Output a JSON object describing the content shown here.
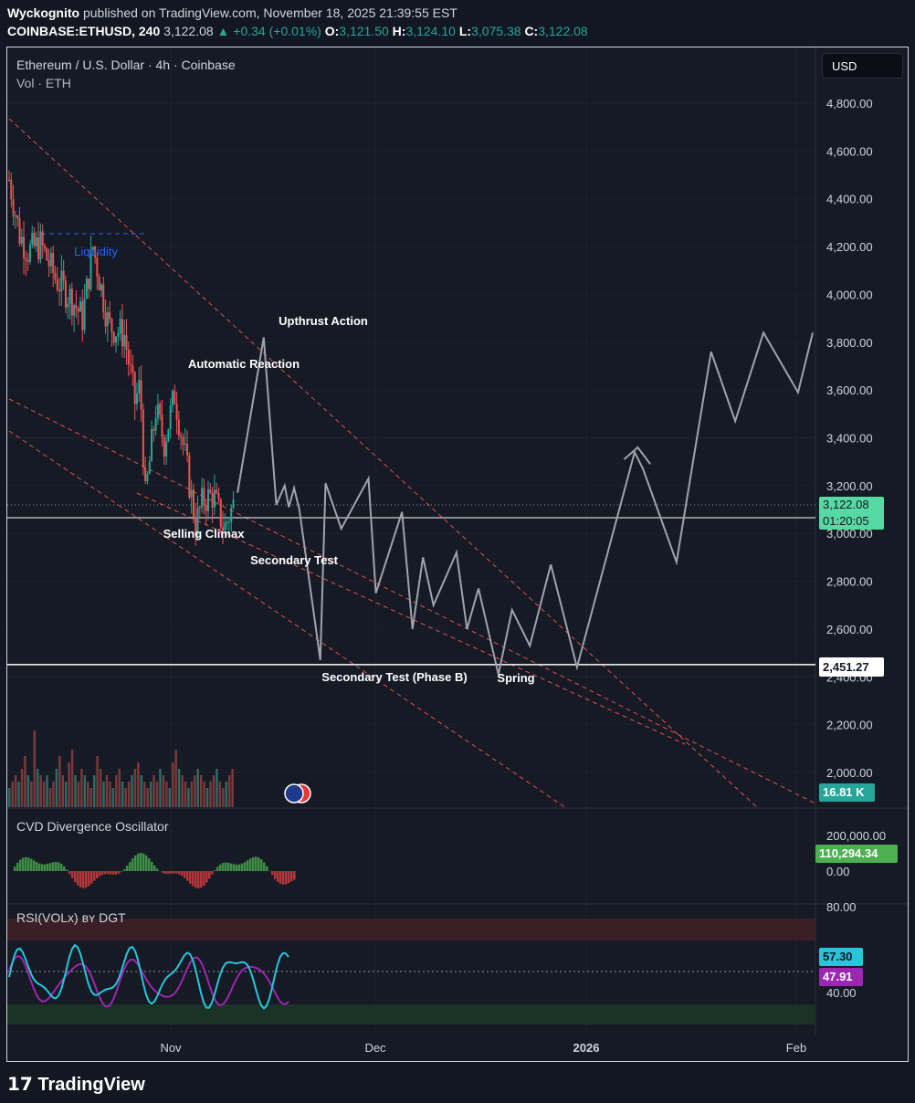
{
  "header": {
    "publisher": "Wyckognito",
    "published_text": "published on TradingView.com, November 18, 2025 21:39:55 EST",
    "symbol": "COINBASE:ETHUSD, 240",
    "price": "3,122.08",
    "change": "▲ +0.34 (+0.01%)",
    "o_label": "O:",
    "o": "3,121.50",
    "h_label": "H:",
    "h": "3,124.10",
    "l_label": "L:",
    "l": "3,075.38",
    "c_label": "C:",
    "c": "3,122.08"
  },
  "pane": {
    "title": "Ethereum / U.S. Dollar · 4h · Coinbase",
    "vol_label": "Vol · ETH",
    "currency": "USD"
  },
  "chart_data": {
    "type": "candlestick",
    "y_ticks": [
      "4,800.00",
      "4,600.00",
      "4,400.00",
      "4,200.00",
      "4,000.00",
      "3,800.00",
      "3,600.00",
      "3,400.00",
      "3,200.00",
      "3,000.00",
      "2,800.00",
      "2,600.00",
      "2,400.00",
      "2,200.00",
      "2,000.00"
    ],
    "y_tick_values": [
      4800,
      4600,
      4400,
      4200,
      4000,
      3800,
      3600,
      3400,
      3200,
      3000,
      2800,
      2600,
      2400,
      2200,
      2000
    ],
    "x_ticks": [
      "Nov",
      "Dec",
      "2026",
      "Feb"
    ],
    "current_price": "3,122.08",
    "countdown": "01:20:05",
    "level_price": "2,451.27",
    "level_value": 2451.27,
    "volume_label": "16.81 K",
    "annotations": [
      "Liquidity",
      "Upthrust Action",
      "Automatic Reaction",
      "Selling Climax",
      "Secondary Test",
      "Secondary Test (Phase B)",
      "Spring"
    ],
    "price_path": [
      [
        0,
        4480
      ],
      [
        10,
        4250
      ],
      [
        18,
        4180
      ],
      [
        30,
        4210
      ],
      [
        45,
        4060
      ],
      [
        60,
        3980
      ],
      [
        70,
        3900
      ],
      [
        80,
        4200
      ],
      [
        95,
        3870
      ],
      [
        110,
        3830
      ],
      [
        120,
        3550
      ],
      [
        125,
        3620
      ],
      [
        130,
        3150
      ],
      [
        140,
        3520
      ],
      [
        148,
        3380
      ],
      [
        158,
        3580
      ],
      [
        168,
        3320
      ],
      [
        178,
        3040
      ],
      [
        185,
        3140
      ],
      [
        195,
        3160
      ],
      [
        205,
        3020
      ],
      [
        215,
        3130
      ]
    ],
    "projection_path": [
      [
        218,
        3170
      ],
      [
        243,
        3820
      ],
      [
        255,
        3120
      ],
      [
        263,
        3200
      ],
      [
        267,
        3110
      ],
      [
        272,
        3190
      ],
      [
        277,
        3100
      ],
      [
        297,
        2470
      ],
      [
        302,
        3210
      ],
      [
        317,
        3020
      ],
      [
        343,
        3230
      ],
      [
        350,
        2750
      ],
      [
        375,
        3090
      ],
      [
        385,
        2600
      ],
      [
        395,
        2900
      ],
      [
        405,
        2700
      ],
      [
        427,
        2920
      ],
      [
        437,
        2600
      ],
      [
        448,
        2770
      ],
      [
        467,
        2410
      ],
      [
        480,
        2680
      ],
      [
        497,
        2530
      ],
      [
        517,
        2870
      ],
      [
        542,
        2440
      ],
      [
        597,
        3340
      ],
      [
        605,
        3270
      ],
      [
        637,
        2880
      ],
      [
        670,
        3760
      ],
      [
        693,
        3470
      ],
      [
        720,
        3840
      ],
      [
        753,
        3590
      ],
      [
        767,
        3840
      ]
    ],
    "projection_arrow": [
      [
        587,
        3310
      ],
      [
        600,
        3360
      ],
      [
        612,
        3290
      ]
    ],
    "volume": [
      3,
      4,
      5,
      4,
      6,
      8,
      5,
      4,
      12,
      6,
      5,
      4,
      5,
      3,
      4,
      6,
      8,
      5,
      4,
      7,
      9,
      5,
      4,
      6,
      5,
      4,
      3,
      5,
      8,
      6,
      4,
      5,
      4,
      3,
      5,
      6,
      4,
      3,
      4,
      5,
      6,
      7,
      5,
      4,
      3,
      4,
      5,
      4,
      6,
      5,
      4,
      3,
      7,
      9,
      6,
      5,
      4,
      3,
      4,
      5,
      6,
      5,
      4,
      3,
      4,
      5,
      6,
      4,
      3,
      4,
      5,
      6
    ],
    "cvd": {
      "name": "CVD Divergence Oscillator",
      "ticks": [
        "200,000.00",
        "0.00"
      ],
      "value": "110,294.34"
    },
    "rsi": {
      "name": "RSI(VOLx)",
      "author": "ʙʏ DGT",
      "ticks": [
        "80.00",
        "40.00"
      ],
      "value_rsi": "57.30",
      "value_vol": "47.91"
    }
  },
  "branding": "TradingView"
}
